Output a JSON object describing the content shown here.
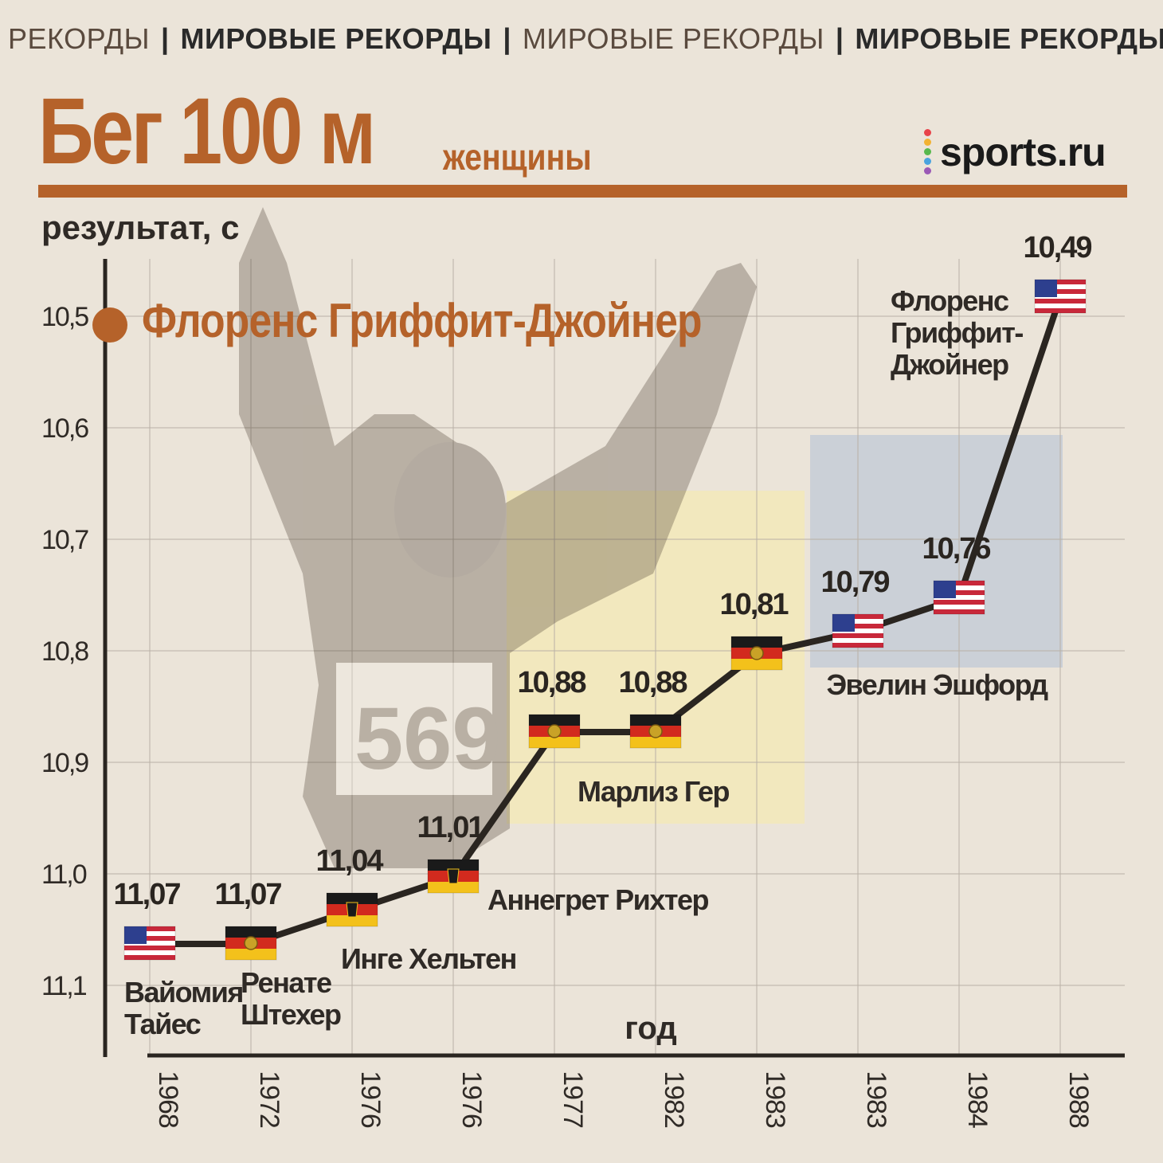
{
  "banner": {
    "items": [
      {
        "text": "РЕКОРДЫ",
        "style": "thin"
      },
      {
        "text": "|",
        "style": "sep"
      },
      {
        "text": "МИРОВЫЕ РЕКОРДЫ",
        "style": "bold"
      },
      {
        "text": "|",
        "style": "sep"
      },
      {
        "text": "МИРОВЫЕ РЕКОРДЫ",
        "style": "thin"
      },
      {
        "text": "|",
        "style": "sep"
      },
      {
        "text": "МИРОВЫЕ РЕКОРДЫ",
        "style": "bold"
      }
    ]
  },
  "header": {
    "title": "Бег 100 м",
    "subtitle": "женщины",
    "brand": "sports.ru",
    "brand_dot_colors": [
      "#e8434a",
      "#f2b233",
      "#58b84d",
      "#4aa3df",
      "#9b59b6"
    ]
  },
  "hero_label": "Флоренс Гриффит-Джойнер",
  "colors": {
    "accent": "#b5622a",
    "line": "#2a2520",
    "grid": "#b9b1a6",
    "band_yellow": "#f3e9b8",
    "band_blue": "#c8cdd6"
  },
  "chart_data": {
    "type": "line",
    "title": "Бег 100 м",
    "subtitle": "женщины",
    "ylabel": "результат, с",
    "xlabel": "год",
    "y_reversed": true,
    "ylim": [
      11.15,
      10.45
    ],
    "yticks": [
      "10,5",
      "10,6",
      "10,7",
      "10,8",
      "10,9",
      "11,0",
      "11,1"
    ],
    "ytick_values": [
      10.5,
      10.6,
      10.7,
      10.8,
      10.9,
      11.0,
      11.1
    ],
    "grid": true,
    "categories": [
      "1968",
      "1972",
      "1976",
      "1976",
      "1977",
      "1982",
      "1983",
      "1983",
      "1984",
      "1988"
    ],
    "values": [
      11.07,
      11.07,
      11.04,
      11.01,
      10.88,
      10.88,
      10.81,
      10.79,
      10.76,
      10.49
    ],
    "value_labels": [
      "11,07",
      "11,07",
      "11,04",
      "11,01",
      "10,88",
      "10,88",
      "10,81",
      "10,79",
      "10,76",
      "10,49"
    ],
    "flags": [
      "usa",
      "gdr",
      "frg",
      "frg",
      "gdr",
      "gdr",
      "gdr",
      "usa",
      "usa",
      "usa"
    ],
    "athletes": [
      {
        "name": [
          "Вайомия",
          "Тайес"
        ],
        "points": [
          0
        ]
      },
      {
        "name": [
          "Ренате",
          "Штехер"
        ],
        "points": [
          1
        ]
      },
      {
        "name": [
          "Инге Хельтен"
        ],
        "points": [
          2
        ]
      },
      {
        "name": [
          "Аннегрет Рихтер"
        ],
        "points": [
          3
        ]
      },
      {
        "name": [
          "Марлиз Гер"
        ],
        "points": [
          4,
          5,
          6
        ],
        "band": "yellow"
      },
      {
        "name": [
          "Эвелин Эшфорд"
        ],
        "points": [
          7,
          8
        ],
        "band": "blue"
      },
      {
        "name": [
          "Флоренс",
          "Гриффит-",
          "Джойнер"
        ],
        "points": [
          9
        ]
      }
    ]
  }
}
